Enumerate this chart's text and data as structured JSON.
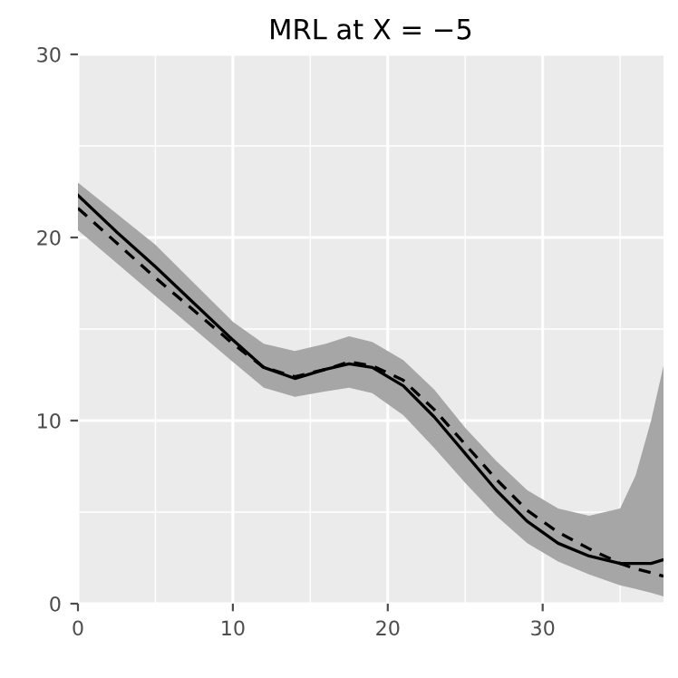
{
  "chart_data": {
    "type": "line",
    "title": "MRL at X = −5",
    "x": [
      0,
      2.5,
      5,
      7.5,
      10,
      12,
      14,
      16,
      17.5,
      19,
      21,
      23,
      25,
      27,
      29,
      31,
      33,
      35,
      36,
      37,
      37.8
    ],
    "series": [
      {
        "color": "#000000",
        "line_style": "solid",
        "values": [
          22.3,
          20.3,
          18.4,
          16.4,
          14.4,
          12.9,
          12.3,
          12.8,
          13.1,
          12.9,
          11.9,
          10.2,
          8.2,
          6.2,
          4.5,
          3.3,
          2.6,
          2.2,
          2.2,
          2.2,
          2.4
        ],
        "lower": [
          20.4,
          18.6,
          16.8,
          15.0,
          13.2,
          11.8,
          11.3,
          11.6,
          11.8,
          11.5,
          10.3,
          8.5,
          6.6,
          4.8,
          3.3,
          2.3,
          1.6,
          1.0,
          0.8,
          0.6,
          0.4
        ],
        "upper": [
          23.0,
          21.3,
          19.6,
          17.5,
          15.4,
          14.2,
          13.8,
          14.2,
          14.6,
          14.3,
          13.3,
          11.7,
          9.6,
          7.8,
          6.2,
          5.2,
          4.8,
          5.2,
          7.0,
          10.0,
          13.0
        ]
      },
      {
        "color": "#000000",
        "line_style": "dashed",
        "values": [
          21.6,
          19.7,
          17.8,
          16.0,
          14.2,
          12.9,
          12.4,
          12.8,
          13.2,
          13.0,
          12.2,
          10.6,
          8.7,
          6.8,
          5.1,
          3.9,
          3.0,
          2.2,
          1.9,
          1.7,
          1.5
        ]
      }
    ],
    "xlim": [
      0,
      37.8
    ],
    "ylim": [
      0,
      30
    ],
    "xticks": [
      0,
      10,
      20,
      30
    ],
    "yticks": [
      0,
      10,
      20,
      30
    ],
    "grid": true
  }
}
